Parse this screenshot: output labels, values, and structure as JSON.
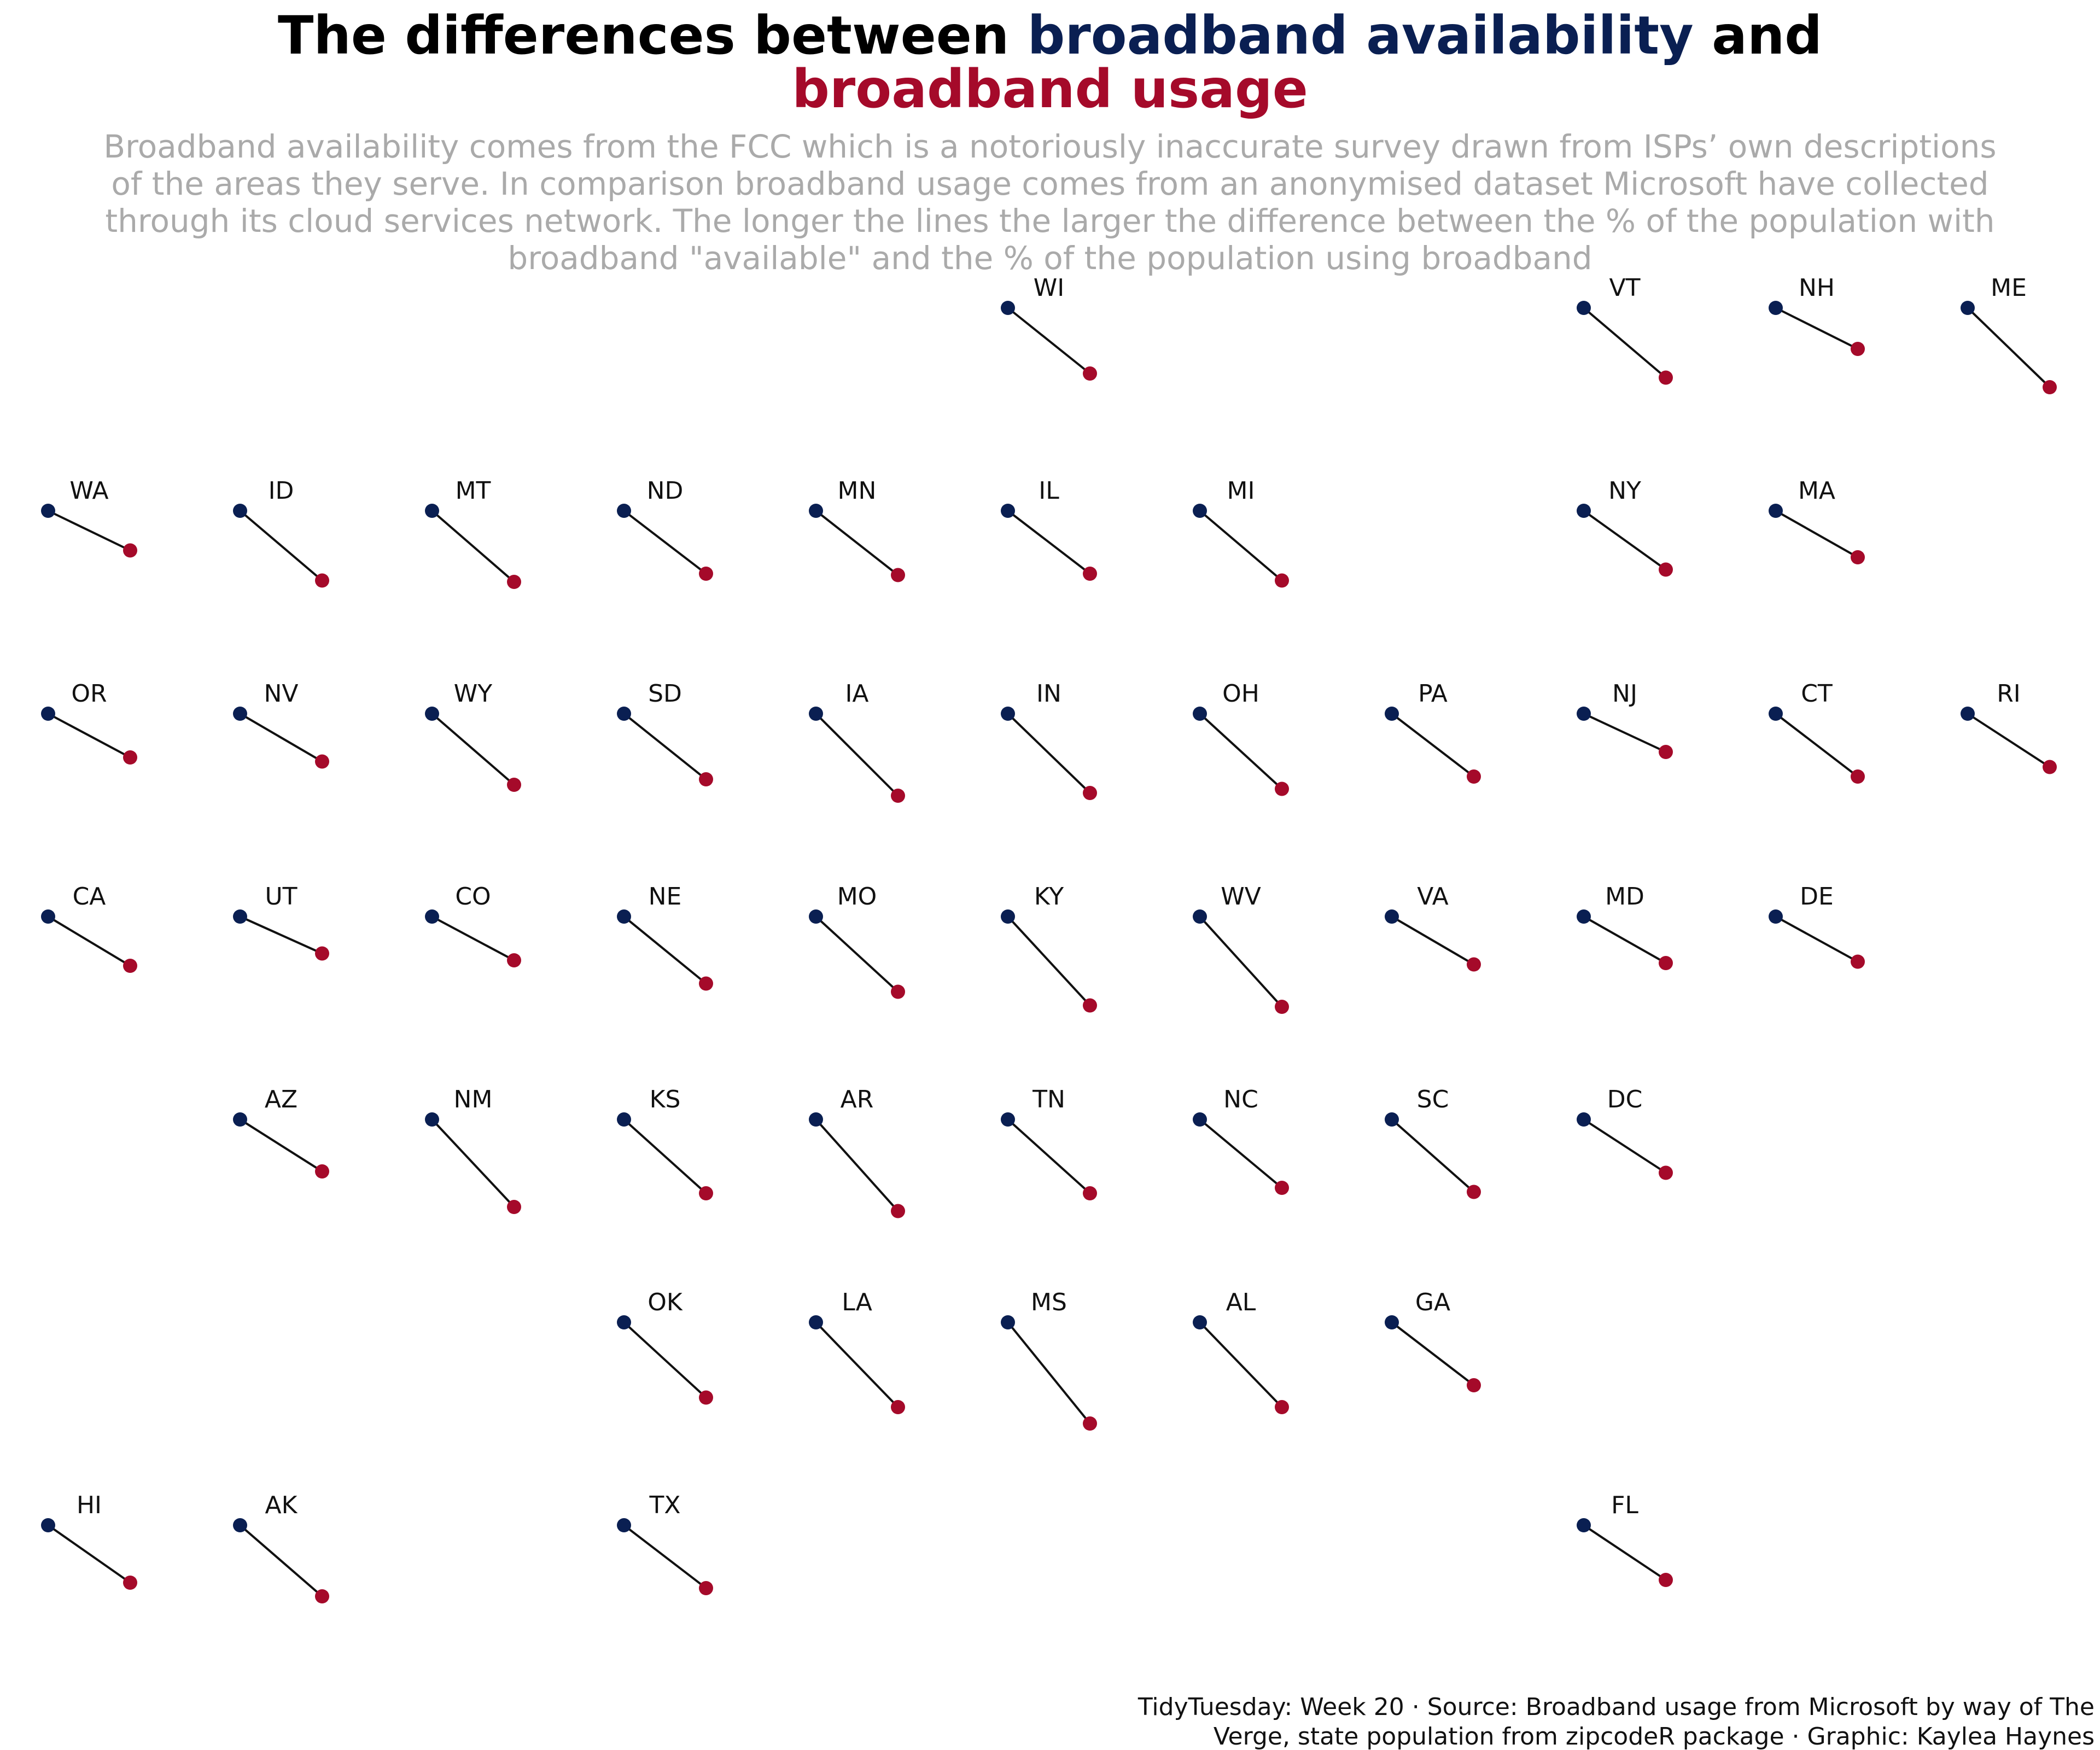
{
  "title": {
    "part1": "The differences between ",
    "part2": "broadband availability",
    "part3": " and",
    "part4": "broadband usage"
  },
  "subtitle": [
    "Broadband availability comes from the FCC which is a notoriously inaccurate survey drawn from ISPs’ own descriptions",
    "of the areas they serve. In comparison broadband usage comes from an anonymised dataset Microsoft have collected",
    "through its cloud services network. The longer the lines the larger the difference between the % of the population with",
    "broadband \"available\" and the % of the population using broadband"
  ],
  "caption": [
    "TidyTuesday: Week 20 · Source: Broadband usage from Microsoft by way of The",
    "Verge, state population from zipcodeR package · Graphic: Kaylea Haynes"
  ],
  "colors": {
    "availability": "#0a1f52",
    "usage": "#a50a2a",
    "line": "#111111"
  },
  "chart_data": {
    "type": "scatter",
    "layout": "geofacet-grid",
    "panel_x_labels": [
      "availability",
      "usage"
    ],
    "y_units": "relative drop from availability to usage (0–1 scale of panel height)",
    "states": [
      {
        "code": "WI",
        "row": 1,
        "col": 6,
        "drop": 0.48
      },
      {
        "code": "VT",
        "row": 1,
        "col": 9,
        "drop": 0.51
      },
      {
        "code": "NH",
        "row": 1,
        "col": 10,
        "drop": 0.3
      },
      {
        "code": "ME",
        "row": 1,
        "col": 11,
        "drop": 0.58
      },
      {
        "code": "WA",
        "row": 2,
        "col": 1,
        "drop": 0.29
      },
      {
        "code": "ID",
        "row": 2,
        "col": 2,
        "drop": 0.51
      },
      {
        "code": "MT",
        "row": 2,
        "col": 3,
        "drop": 0.52
      },
      {
        "code": "ND",
        "row": 2,
        "col": 4,
        "drop": 0.46
      },
      {
        "code": "MN",
        "row": 2,
        "col": 5,
        "drop": 0.47
      },
      {
        "code": "IL",
        "row": 2,
        "col": 6,
        "drop": 0.46
      },
      {
        "code": "MI",
        "row": 2,
        "col": 7,
        "drop": 0.51
      },
      {
        "code": "NY",
        "row": 2,
        "col": 9,
        "drop": 0.43
      },
      {
        "code": "MA",
        "row": 2,
        "col": 10,
        "drop": 0.34
      },
      {
        "code": "OR",
        "row": 3,
        "col": 1,
        "drop": 0.32
      },
      {
        "code": "NV",
        "row": 3,
        "col": 2,
        "drop": 0.35
      },
      {
        "code": "WY",
        "row": 3,
        "col": 3,
        "drop": 0.52
      },
      {
        "code": "SD",
        "row": 3,
        "col": 4,
        "drop": 0.48
      },
      {
        "code": "IA",
        "row": 3,
        "col": 5,
        "drop": 0.6
      },
      {
        "code": "IN",
        "row": 3,
        "col": 6,
        "drop": 0.58
      },
      {
        "code": "OH",
        "row": 3,
        "col": 7,
        "drop": 0.55
      },
      {
        "code": "PA",
        "row": 3,
        "col": 8,
        "drop": 0.46
      },
      {
        "code": "NJ",
        "row": 3,
        "col": 9,
        "drop": 0.28
      },
      {
        "code": "CT",
        "row": 3,
        "col": 10,
        "drop": 0.46
      },
      {
        "code": "RI",
        "row": 3,
        "col": 11,
        "drop": 0.39
      },
      {
        "code": "CA",
        "row": 4,
        "col": 1,
        "drop": 0.36
      },
      {
        "code": "UT",
        "row": 4,
        "col": 2,
        "drop": 0.27
      },
      {
        "code": "CO",
        "row": 4,
        "col": 3,
        "drop": 0.32
      },
      {
        "code": "NE",
        "row": 4,
        "col": 4,
        "drop": 0.49
      },
      {
        "code": "MO",
        "row": 4,
        "col": 5,
        "drop": 0.55
      },
      {
        "code": "KY",
        "row": 4,
        "col": 6,
        "drop": 0.65
      },
      {
        "code": "WV",
        "row": 4,
        "col": 7,
        "drop": 0.66
      },
      {
        "code": "VA",
        "row": 4,
        "col": 8,
        "drop": 0.35
      },
      {
        "code": "MD",
        "row": 4,
        "col": 9,
        "drop": 0.34
      },
      {
        "code": "DE",
        "row": 4,
        "col": 10,
        "drop": 0.33
      },
      {
        "code": "AZ",
        "row": 5,
        "col": 2,
        "drop": 0.38
      },
      {
        "code": "NM",
        "row": 5,
        "col": 3,
        "drop": 0.64
      },
      {
        "code": "KS",
        "row": 5,
        "col": 4,
        "drop": 0.54
      },
      {
        "code": "AR",
        "row": 5,
        "col": 5,
        "drop": 0.67
      },
      {
        "code": "TN",
        "row": 5,
        "col": 6,
        "drop": 0.54
      },
      {
        "code": "NC",
        "row": 5,
        "col": 7,
        "drop": 0.5
      },
      {
        "code": "SC",
        "row": 5,
        "col": 8,
        "drop": 0.53
      },
      {
        "code": "DC",
        "row": 5,
        "col": 9,
        "drop": 0.39
      },
      {
        "code": "OK",
        "row": 6,
        "col": 4,
        "drop": 0.55
      },
      {
        "code": "LA",
        "row": 6,
        "col": 5,
        "drop": 0.62
      },
      {
        "code": "MS",
        "row": 6,
        "col": 6,
        "drop": 0.74
      },
      {
        "code": "AL",
        "row": 6,
        "col": 7,
        "drop": 0.62
      },
      {
        "code": "GA",
        "row": 6,
        "col": 8,
        "drop": 0.46
      },
      {
        "code": "HI",
        "row": 7,
        "col": 1,
        "drop": 0.42
      },
      {
        "code": "AK",
        "row": 7,
        "col": 2,
        "drop": 0.52
      },
      {
        "code": "TX",
        "row": 7,
        "col": 4,
        "drop": 0.46
      },
      {
        "code": "FL",
        "row": 7,
        "col": 9,
        "drop": 0.4
      }
    ]
  }
}
